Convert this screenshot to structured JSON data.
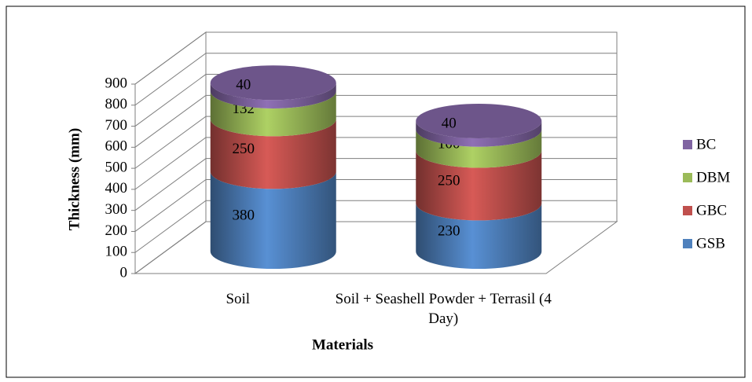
{
  "chart_data": {
    "type": "stacked-cylinder",
    "categories": [
      "Soil",
      "Soil + Seashell Powder + Terrasil (4 Day)"
    ],
    "series": [
      {
        "name": "GSB",
        "color": "#4f81bd",
        "values": [
          380,
          230
        ]
      },
      {
        "name": "GBC",
        "color": "#c0504d",
        "values": [
          250,
          250
        ]
      },
      {
        "name": "DBM",
        "color": "#9bbb59",
        "values": [
          132,
          100
        ]
      },
      {
        "name": "BC",
        "color": "#8064a2",
        "values": [
          40,
          40
        ]
      }
    ],
    "ylim": [
      0,
      900
    ],
    "yticks": [
      0,
      100,
      200,
      300,
      400,
      500,
      600,
      700,
      800,
      900
    ],
    "y_label": "Thickness (mm)",
    "x_label": "Materials",
    "grid": true,
    "legend": "right"
  }
}
